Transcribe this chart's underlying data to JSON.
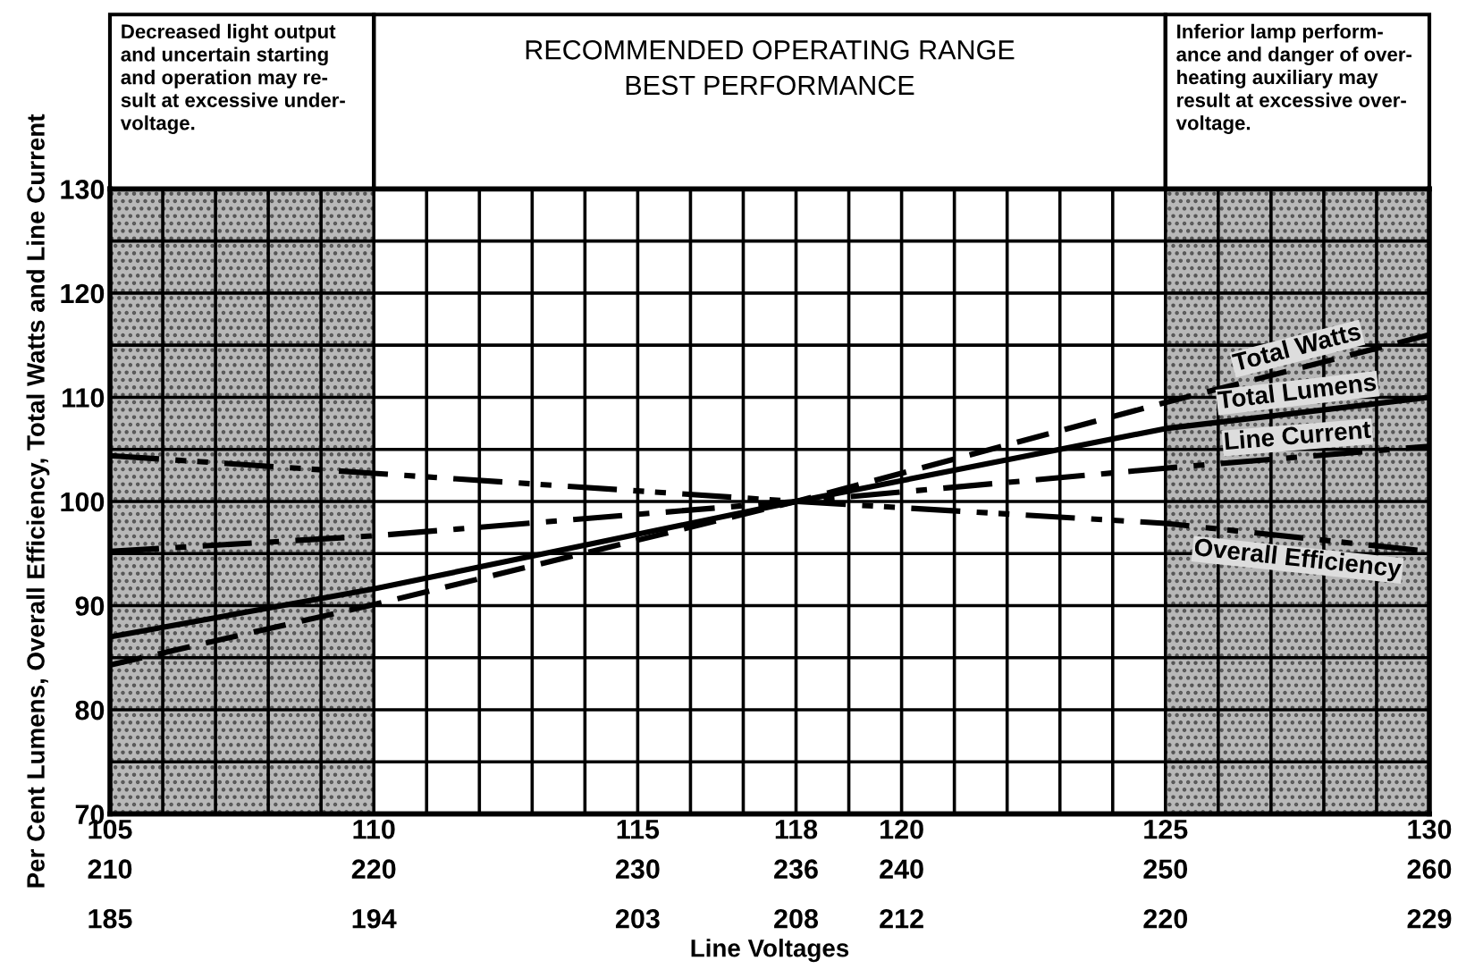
{
  "chart_data": {
    "type": "line",
    "xlabel": "Line Voltages",
    "ylabel": "Per Cent Lumens, Overall Efficiency, Total Watts and Line Current",
    "annotations": [
      "RECOMMENDED OPERATING RANGE\nBEST PERFORMANCE",
      "185",
      "194",
      "203",
      "208",
      "212",
      "220",
      "229"
    ],
    "x": [
      105,
      110,
      118,
      125,
      130
    ],
    "series": [
      {
        "name": "Total Watts",
        "color": "#000000",
        "line_style": "dashed",
        "values": [
          84.3,
          90.1,
          100,
          109.5,
          116
        ]
      },
      {
        "name": "Total Lumens",
        "color": "#000000",
        "line_style": "solid",
        "values": [
          87,
          91.6,
          100,
          107,
          110
        ]
      },
      {
        "name": "Line Current",
        "color": "#000000",
        "line_style": "dashdot",
        "values": [
          95.2,
          96.7,
          100,
          103.2,
          105.3
        ]
      },
      {
        "name": "Overall Efficiency",
        "color": "#000000",
        "line_style": "dashdotdot",
        "values": [
          104.4,
          102.7,
          100,
          97.9,
          95.2
        ]
      }
    ],
    "bands": [
      {
        "axis": "x",
        "from": 105,
        "to": 110,
        "color": "#b8b8b8",
        "label": "Decreased light output\nand uncertain starting\nand operation may re-\nsult at excessive under-\nvoltage."
      },
      {
        "axis": "x",
        "from": 125,
        "to": 130,
        "color": "#b8b8b8",
        "label": "Inferior lamp perform-\nance and danger of over-\nheating auxiliary may\nresult at excessive over-\nvoltage."
      }
    ],
    "xlim": [
      105,
      130
    ],
    "ylim": [
      70,
      130
    ],
    "xticks": [
      105,
      {
        "value": 106,
        "label": null
      },
      {
        "value": 107,
        "label": null
      },
      {
        "value": 108,
        "label": null
      },
      {
        "value": 109,
        "label": null
      },
      110,
      {
        "value": 111,
        "label": null
      },
      {
        "value": 112,
        "label": null
      },
      {
        "value": 113,
        "label": null
      },
      {
        "value": 114,
        "label": null
      },
      115,
      {
        "value": 116,
        "label": null
      },
      {
        "value": 117,
        "label": null
      },
      118,
      {
        "value": 119,
        "label": null
      },
      120,
      {
        "value": 121,
        "label": null
      },
      {
        "value": 122,
        "label": null
      },
      {
        "value": 123,
        "label": null
      },
      {
        "value": 124,
        "label": null
      },
      125,
      {
        "value": 126,
        "label": null
      },
      {
        "value": 127,
        "label": null
      },
      {
        "value": 128,
        "label": null
      },
      {
        "value": 129,
        "label": null
      },
      130
    ],
    "x2lim": [
      210,
      260
    ],
    "x2ticks": [
      210,
      220,
      230,
      236,
      240,
      250,
      260
    ],
    "yticks": [
      70,
      {
        "value": 75,
        "label": null
      },
      80,
      {
        "value": 85,
        "label": null
      },
      90,
      {
        "value": 95,
        "label": null
      },
      100,
      {
        "value": 105,
        "label": null
      },
      110,
      {
        "value": 115,
        "label": null
      },
      120,
      {
        "value": 125,
        "label": null
      },
      130
    ],
    "grid": true,
    "legend": false
  }
}
